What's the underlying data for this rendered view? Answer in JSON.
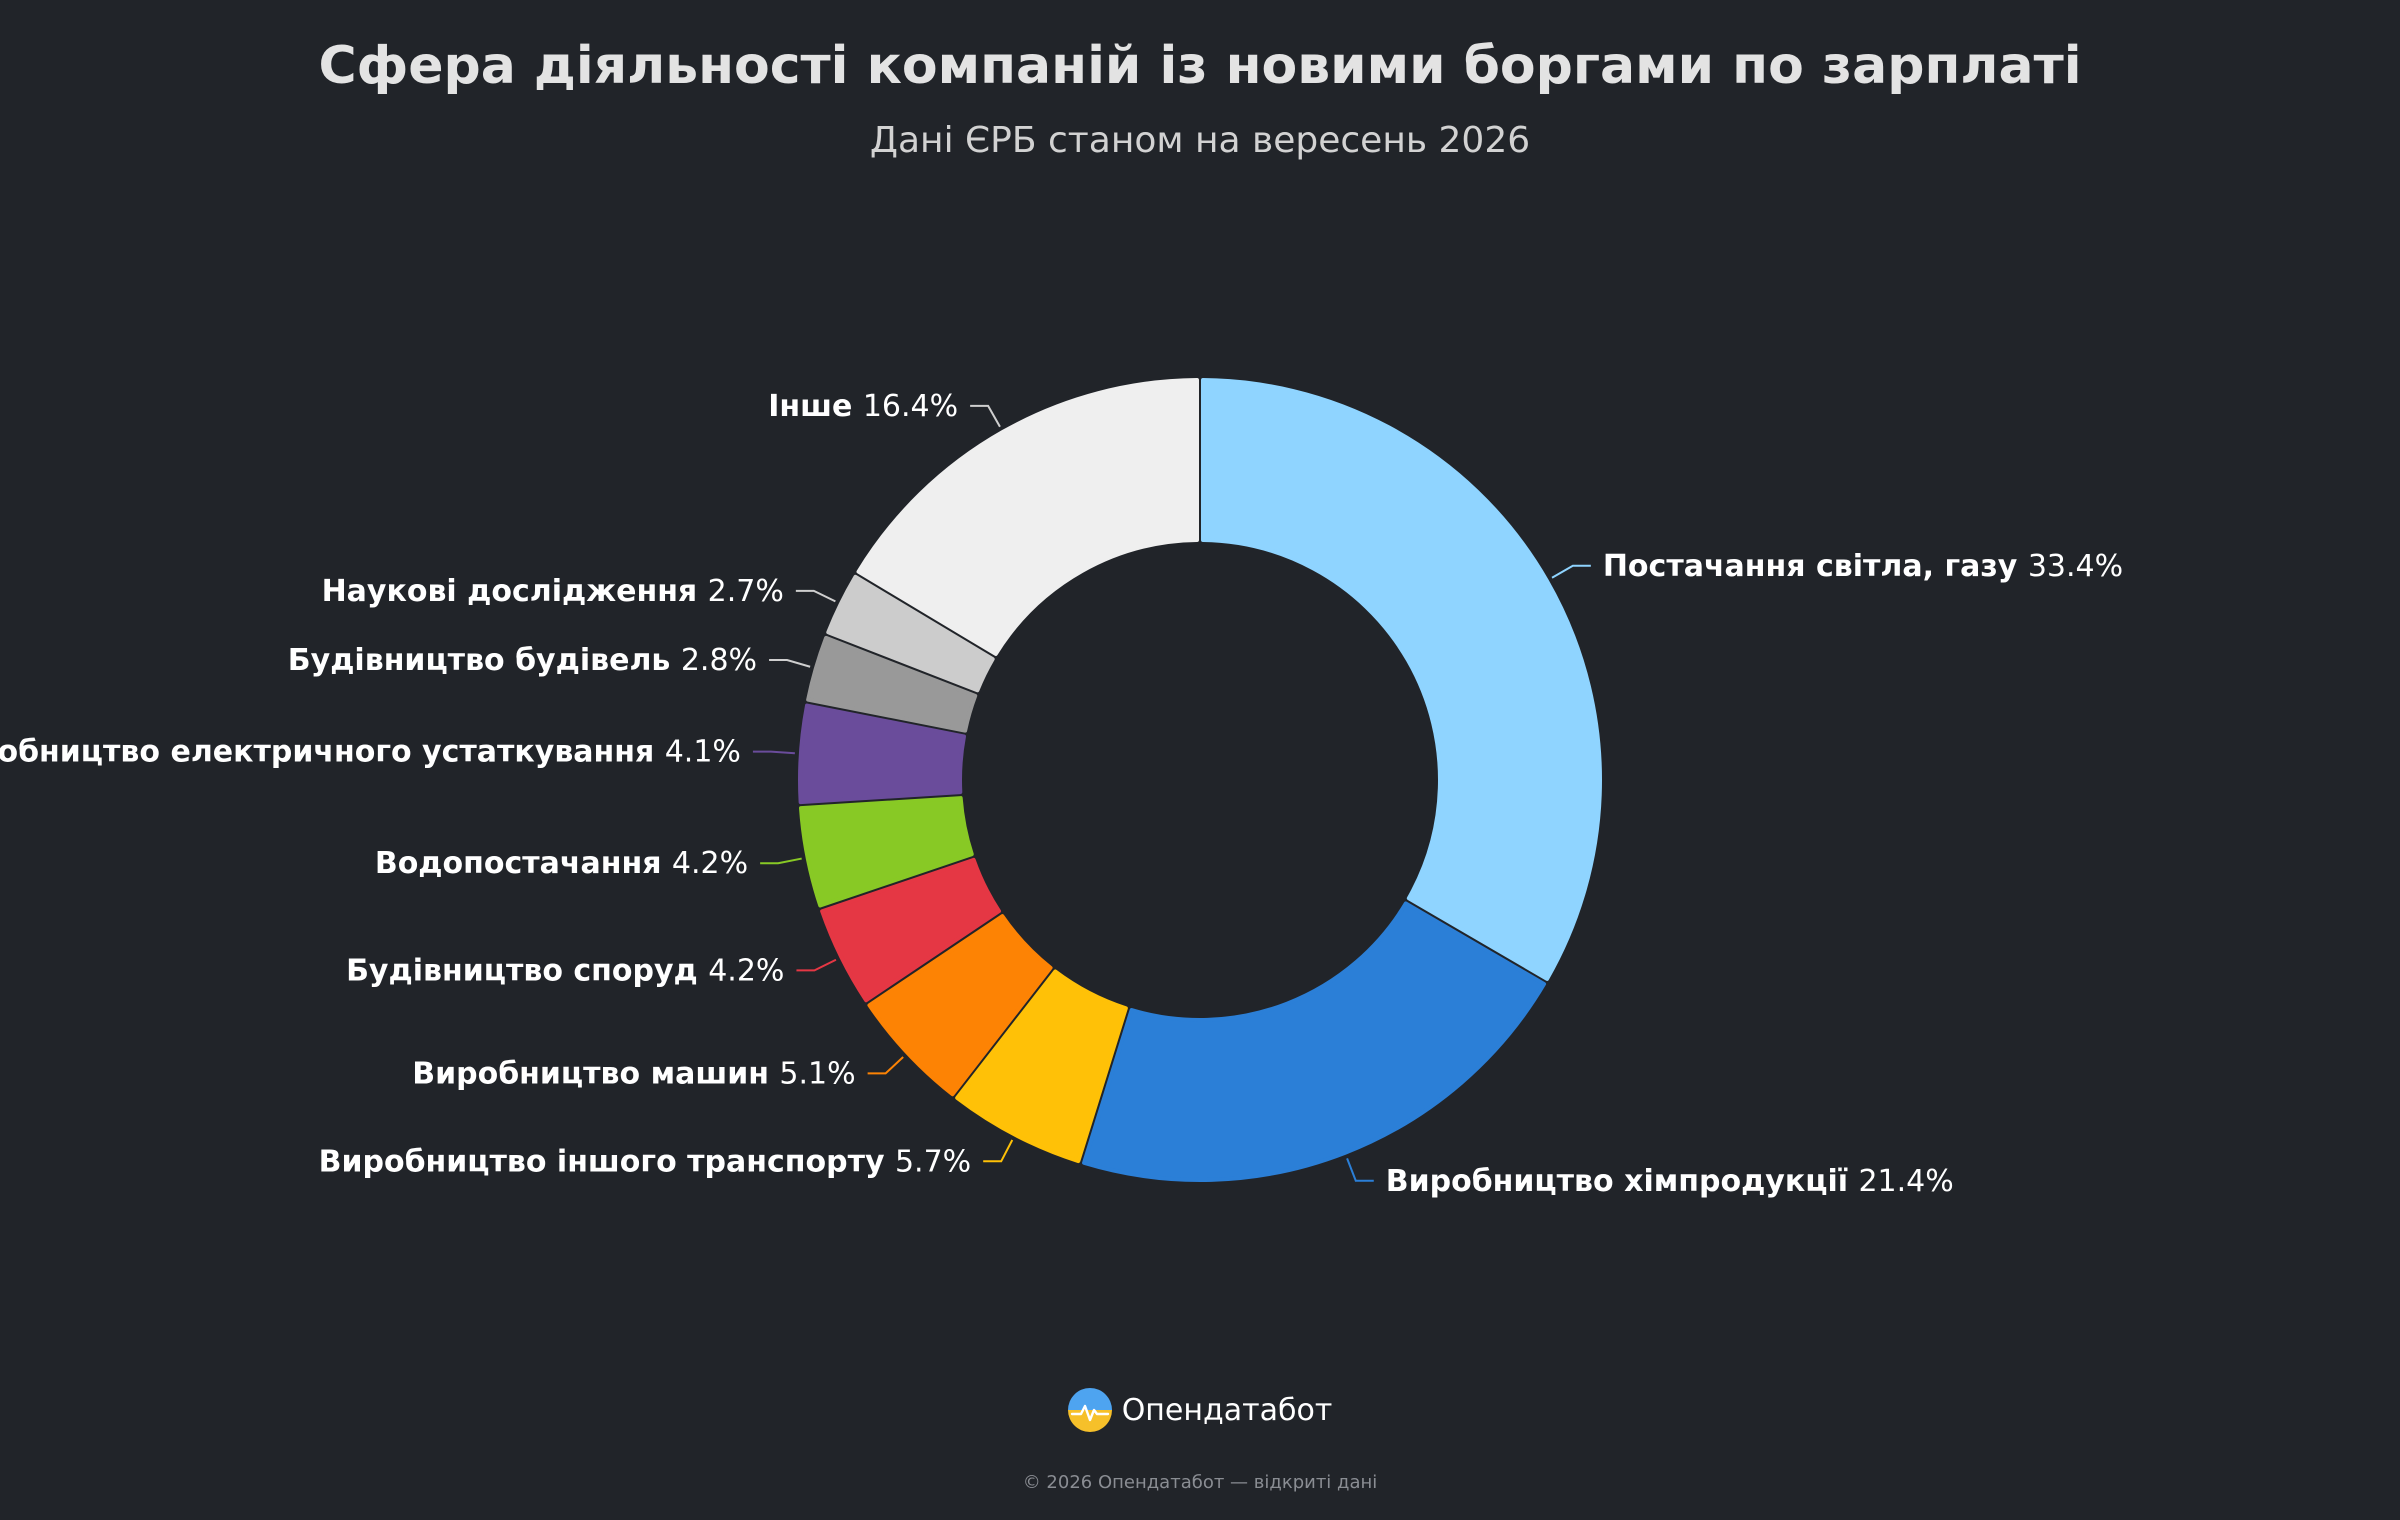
{
  "header": {
    "title": "Сфера діяльності компаній із новими боргами по зарплаті",
    "subtitle": "Дані ЄРБ станом на вересень 2026"
  },
  "chart_data": {
    "type": "pie",
    "variant": "donut",
    "title": "Сфера діяльності компаній із новими боргами по зарплаті",
    "subtitle": "Дані ЄРБ станом на вересень 2026",
    "unit": "%",
    "slices": [
      {
        "label": "Постачання світла, газу",
        "value": 33.4,
        "value_label": "33.4%",
        "color": "#8fd4ff"
      },
      {
        "label": "Виробництво хімпродукції",
        "value": 21.4,
        "value_label": "21.4%",
        "color": "#2b7fd7"
      },
      {
        "label": "Виробництво іншого транспорту",
        "value": 5.7,
        "value_label": "5.7%",
        "color": "#ffc107"
      },
      {
        "label": "Виробництво машин",
        "value": 5.1,
        "value_label": "5.1%",
        "color": "#fd8304"
      },
      {
        "label": "Будівництво споруд",
        "value": 4.2,
        "value_label": "4.2%",
        "color": "#e53744"
      },
      {
        "label": "Водопостачання",
        "value": 4.2,
        "value_label": "4.2%",
        "color": "#88c925"
      },
      {
        "label": "Виробництво електричного устаткування",
        "value": 4.1,
        "value_label": "4.1%",
        "color": "#6a4c9b"
      },
      {
        "label": "Будівництво будівель",
        "value": 2.8,
        "value_label": "2.8%",
        "color": "#999999"
      },
      {
        "label": "Наукові дослідження",
        "value": 2.7,
        "value_label": "2.7%",
        "color": "#cccccc"
      },
      {
        "label": "Інше",
        "value": 16.4,
        "value_label": "16.4%",
        "color": "#efefef"
      }
    ],
    "legend": "none",
    "data_labels": "outside"
  },
  "brand": {
    "name": "Опендатабот",
    "logo_icon": "opendatabot-logo-icon"
  },
  "footer": {
    "text": "© 2026 Опендатабот — відкриті дані"
  },
  "colors": {
    "background": "#212429"
  }
}
